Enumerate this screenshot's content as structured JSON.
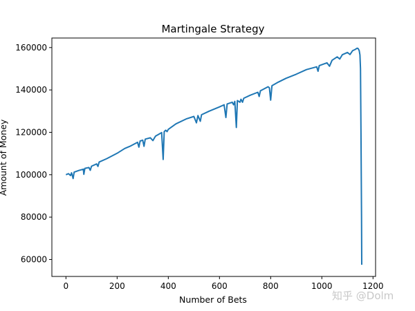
{
  "chart_data": {
    "type": "line",
    "title": "Martingale Strategy",
    "xlabel": "Number of Bets",
    "ylabel": "Amount of Money",
    "xlim": [
      -55,
      1210
    ],
    "ylim": [
      52000,
      164500
    ],
    "xticks": [
      0,
      200,
      400,
      600,
      800,
      1000,
      1200
    ],
    "yticks": [
      60000,
      80000,
      100000,
      120000,
      140000,
      160000
    ],
    "grid": false,
    "legend": "none",
    "series": [
      {
        "color": "#1f77b4",
        "points": [
          [
            0,
            100000
          ],
          [
            10,
            100500
          ],
          [
            18,
            99600
          ],
          [
            22,
            100900
          ],
          [
            28,
            98200
          ],
          [
            32,
            101200
          ],
          [
            50,
            102000
          ],
          [
            68,
            102600
          ],
          [
            70,
            100200
          ],
          [
            74,
            103000
          ],
          [
            90,
            103400
          ],
          [
            95,
            102100
          ],
          [
            100,
            104000
          ],
          [
            120,
            105100
          ],
          [
            125,
            103900
          ],
          [
            130,
            106000
          ],
          [
            160,
            107600
          ],
          [
            200,
            110100
          ],
          [
            230,
            112400
          ],
          [
            250,
            113400
          ],
          [
            280,
            115300
          ],
          [
            285,
            113000
          ],
          [
            290,
            115900
          ],
          [
            300,
            116300
          ],
          [
            305,
            113400
          ],
          [
            310,
            116800
          ],
          [
            330,
            117400
          ],
          [
            340,
            116100
          ],
          [
            350,
            118200
          ],
          [
            370,
            119600
          ],
          [
            374,
            119900
          ],
          [
            380,
            107200
          ],
          [
            384,
            120300
          ],
          [
            390,
            121000
          ],
          [
            395,
            120300
          ],
          [
            400,
            121400
          ],
          [
            430,
            124000
          ],
          [
            470,
            126300
          ],
          [
            500,
            127500
          ],
          [
            510,
            124500
          ],
          [
            516,
            127900
          ],
          [
            525,
            125200
          ],
          [
            530,
            128300
          ],
          [
            560,
            130000
          ],
          [
            600,
            132000
          ],
          [
            618,
            133000
          ],
          [
            625,
            127000
          ],
          [
            630,
            133400
          ],
          [
            650,
            134200
          ],
          [
            655,
            133000
          ],
          [
            660,
            134600
          ],
          [
            666,
            122300
          ],
          [
            670,
            135000
          ],
          [
            680,
            134200
          ],
          [
            684,
            135600
          ],
          [
            690,
            134200
          ],
          [
            695,
            136100
          ],
          [
            720,
            137500
          ],
          [
            750,
            138900
          ],
          [
            755,
            136900
          ],
          [
            760,
            139600
          ],
          [
            790,
            141500
          ],
          [
            795,
            141000
          ],
          [
            800,
            135200
          ],
          [
            805,
            142000
          ],
          [
            830,
            143700
          ],
          [
            860,
            145500
          ],
          [
            900,
            147400
          ],
          [
            940,
            149600
          ],
          [
            980,
            150900
          ],
          [
            985,
            148800
          ],
          [
            990,
            151500
          ],
          [
            1020,
            152800
          ],
          [
            1030,
            151200
          ],
          [
            1040,
            154000
          ],
          [
            1060,
            155600
          ],
          [
            1070,
            154600
          ],
          [
            1080,
            156600
          ],
          [
            1100,
            157700
          ],
          [
            1110,
            156700
          ],
          [
            1120,
            158500
          ],
          [
            1130,
            159100
          ],
          [
            1138,
            159700
          ],
          [
            1142,
            159500
          ],
          [
            1146,
            158600
          ],
          [
            1149,
            156500
          ],
          [
            1151,
            150000
          ],
          [
            1153,
            120000
          ],
          [
            1155,
            80000
          ],
          [
            1156,
            57500
          ]
        ]
      }
    ]
  },
  "watermark": "知乎 @Dolm"
}
